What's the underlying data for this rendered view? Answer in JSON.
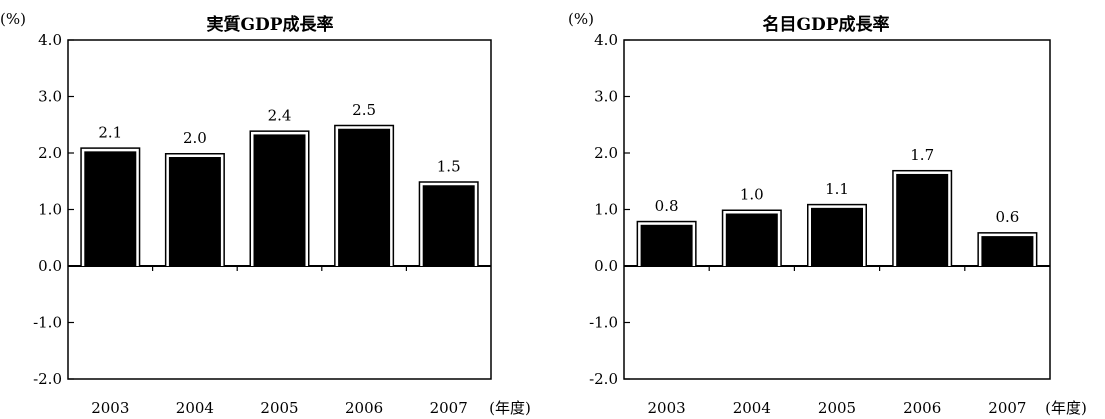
{
  "chart_data": [
    {
      "type": "bar",
      "title": "実質GDP成長率",
      "y_unit": "(%)",
      "x_unit": "(年度)",
      "categories": [
        "2003",
        "2004",
        "2005",
        "2006",
        "2007"
      ],
      "values": [
        2.1,
        2.0,
        2.4,
        2.5,
        1.5
      ],
      "data_labels": [
        "2.1",
        "2.0",
        "2.4",
        "2.5",
        "1.5"
      ],
      "ylim": [
        -2.0,
        4.0
      ],
      "y_ticks": [
        "-2.0",
        "-1.0",
        "0.0",
        "1.0",
        "2.0",
        "3.0",
        "4.0"
      ],
      "grid": false,
      "colors": {
        "bar": "#000000",
        "bar_edge": "#ffffff"
      }
    },
    {
      "type": "bar",
      "title": "名目GDP成長率",
      "y_unit": "(%)",
      "x_unit": "(年度)",
      "categories": [
        "2003",
        "2004",
        "2005",
        "2006",
        "2007"
      ],
      "values": [
        0.8,
        1.0,
        1.1,
        1.7,
        0.6
      ],
      "data_labels": [
        "0.8",
        "1.0",
        "1.1",
        "1.7",
        "0.6"
      ],
      "ylim": [
        -2.0,
        4.0
      ],
      "y_ticks": [
        "-2.0",
        "-1.0",
        "0.0",
        "1.0",
        "2.0",
        "3.0",
        "4.0"
      ],
      "grid": false,
      "colors": {
        "bar": "#000000",
        "bar_edge": "#ffffff"
      }
    }
  ]
}
